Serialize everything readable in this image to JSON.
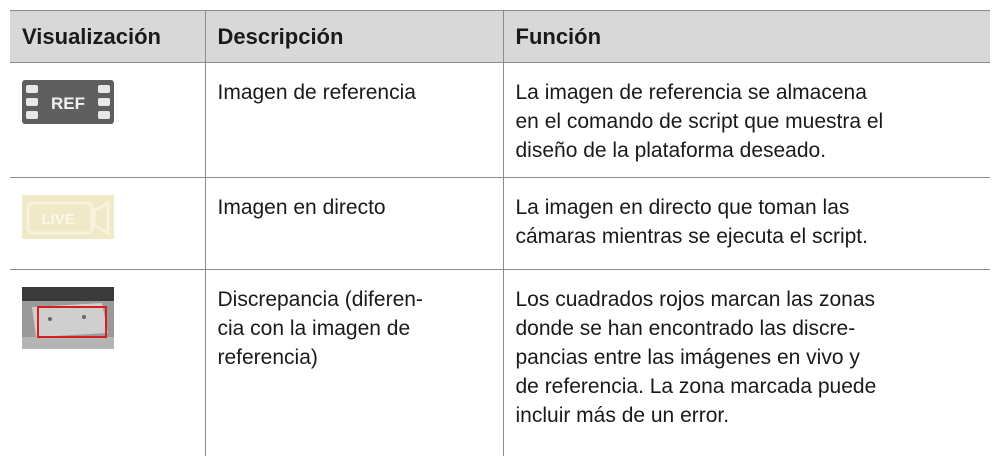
{
  "table": {
    "header": [
      "Visualización",
      "Descripción",
      "Función"
    ],
    "rows": [
      {
        "icon_label": "REF",
        "description": [
          "Imagen de referencia"
        ],
        "function": [
          "La imagen de referencia se almacena",
          "en el comando de script que muestra el",
          "diseño de la plataforma deseado."
        ]
      },
      {
        "icon_label": "LIVE",
        "description": [
          "Imagen en directo"
        ],
        "function": [
          "La imagen en directo que toman las",
          "cámaras mientras se ejecuta el script."
        ]
      },
      {
        "description": [
          "Discrepancia (diferen-",
          "cia con la imagen de",
          "referencia)"
        ],
        "function": [
          "Los cuadrados rojos marcan las zonas",
          "donde se han encontrado las discre-",
          "pancias entre las imágenes en vivo y",
          "de referencia. La zona marcada puede",
          "incluir más de un error."
        ]
      }
    ]
  }
}
